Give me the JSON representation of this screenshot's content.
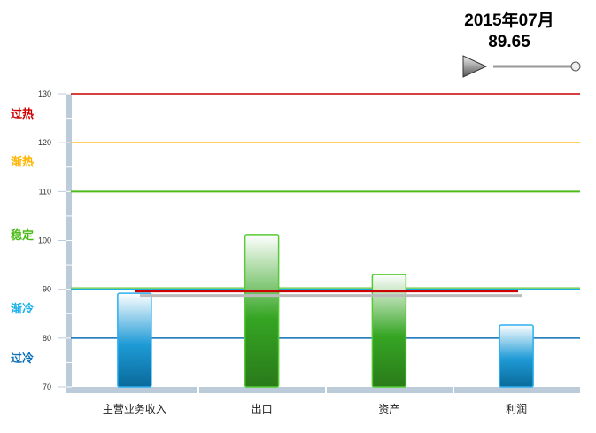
{
  "header": {
    "date": "2015年07月",
    "value": "89.65"
  },
  "controls": {
    "play_icon": "play-triangle-icon",
    "slider_position": 1.0
  },
  "chart_data": {
    "type": "bar",
    "categories": [
      "主营业务收入",
      "出口",
      "资产",
      "利润"
    ],
    "values": [
      89.2,
      101.2,
      93.0,
      82.7
    ],
    "ylim": [
      70,
      130
    ],
    "yticks": [
      70,
      80,
      90,
      100,
      110,
      120,
      130
    ],
    "average_line": 89.65,
    "grid": false,
    "zones": [
      {
        "label": "过热",
        "value": 130,
        "color": "#cc0000"
      },
      {
        "label": "渐热",
        "value": 120,
        "color": "#ffb400"
      },
      {
        "label": "稳定",
        "value": 110,
        "color": "#4cbb17"
      },
      {
        "label": "渐冷",
        "value": 90,
        "color": "#1ab0e8"
      },
      {
        "label": "过冷",
        "value": 80,
        "color": "#0b6fb8"
      }
    ],
    "bar_colors": [
      "#1e8fcf",
      "#3aa62a",
      "#3aa62a",
      "#1e8fcf"
    ]
  }
}
